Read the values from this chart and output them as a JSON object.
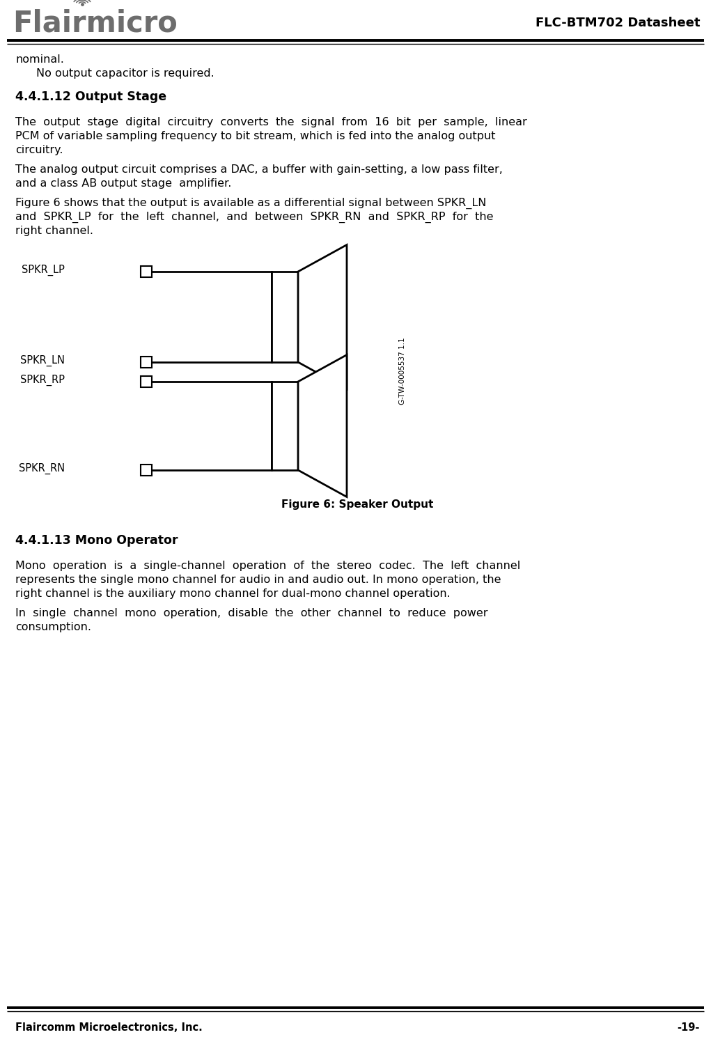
{
  "title_right": "FLC-BTM702 Datasheet",
  "section_412": "4.4.1.12 Output Stage",
  "para1_lines": [
    "The  output  stage  digital  circuitry  converts  the  signal  from  16  bit  per  sample,  linear",
    "PCM of variable sampling frequency to bit stream, which is fed into the analog output",
    "circuitry."
  ],
  "para2_lines": [
    "The analog output circuit comprises a DAC, a buffer with gain-setting, a low pass filter,",
    "and a class AB output stage  amplifier."
  ],
  "para3_lines": [
    "Figure 6 shows that the output is available as a differential signal between SPKR_LN",
    "and  SPKR_LP  for  the  left  channel,  and  between  SPKR_RN  and  SPKR_RP  for  the",
    "right channel."
  ],
  "fig_caption": "Figure 6: Speaker Output",
  "section_413": "4.4.1.13 Mono Operator",
  "para4_lines": [
    "Mono  operation  is  a  single-channel  operation  of  the  stereo  codec.  The  left  channel",
    "represents the single mono channel for audio in and audio out. In mono operation, the",
    "right channel is the auxiliary mono channel for dual-mono channel operation."
  ],
  "para5_lines": [
    "In  single  channel  mono  operation,  disable  the  other  channel  to  reduce  power",
    "consumption."
  ],
  "footer_left": "Flaircomm Microelectronics, Inc.",
  "footer_right": "-19-",
  "logo_text": "Flairmicro",
  "logo_color": "#6d6d6d",
  "diagram_watermark": "G-TW-0005537 1.1",
  "nominal_line1": "nominal.",
  "nominal_line2": "   No output capacitor is required."
}
